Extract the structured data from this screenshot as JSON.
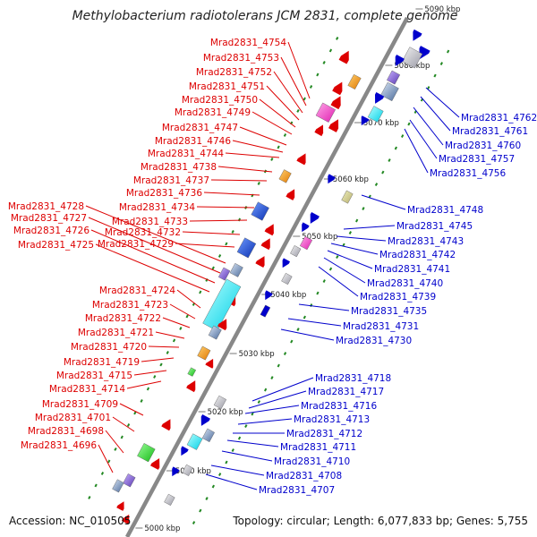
{
  "title": "Methylobacterium radiotolerans JCM 2831, complete genome",
  "footer": {
    "accession": "Accession: NC_010505",
    "summary": "Topology: circular; Length: 6,077,833 bp; Genes: 5,755"
  },
  "colors": {
    "left_strand": "#dd0000",
    "right_strand": "#0000cc",
    "axis": "#888888",
    "tick": "#228822"
  },
  "kbp_markers": [
    "5000 kbp",
    "5010 kbp",
    "5020 kbp",
    "5030 kbp",
    "5040 kbp",
    "5050 kbp",
    "5060 kbp",
    "5070 kbp",
    "5080 kbp",
    "5090 kbp"
  ],
  "left_genes": [
    "Mrad2831_4754",
    "Mrad2831_4753",
    "Mrad2831_4752",
    "Mrad2831_4751",
    "Mrad2831_4750",
    "Mrad2831_4749",
    "Mrad2831_4747",
    "Mrad2831_4746",
    "Mrad2831_4744",
    "Mrad2831_4738",
    "Mrad2831_4737",
    "Mrad2831_4736",
    "Mrad2831_4734",
    "Mrad2831_4733",
    "Mrad2831_4732",
    "Mrad2831_4729",
    "Mrad2831_4728",
    "Mrad2831_4727",
    "Mrad2831_4726",
    "Mrad2831_4725",
    "Mrad2831_4724",
    "Mrad2831_4723",
    "Mrad2831_4722",
    "Mrad2831_4721",
    "Mrad2831_4720",
    "Mrad2831_4719",
    "Mrad2831_4715",
    "Mrad2831_4714",
    "Mrad2831_4709",
    "Mrad2831_4701",
    "Mrad2831_4698",
    "Mrad2831_4696"
  ],
  "right_genes": [
    "Mrad2831_4762",
    "Mrad2831_4761",
    "Mrad2831_4760",
    "Mrad2831_4757",
    "Mrad2831_4756",
    "Mrad2831_4748",
    "Mrad2831_4745",
    "Mrad2831_4743",
    "Mrad2831_4742",
    "Mrad2831_4741",
    "Mrad2831_4740",
    "Mrad2831_4739",
    "Mrad2831_4735",
    "Mrad2831_4731",
    "Mrad2831_4730",
    "Mrad2831_4718",
    "Mrad2831_4717",
    "Mrad2831_4716",
    "Mrad2831_4713",
    "Mrad2831_4712",
    "Mrad2831_4711",
    "Mrad2831_4710",
    "Mrad2831_4708",
    "Mrad2831_4707"
  ]
}
